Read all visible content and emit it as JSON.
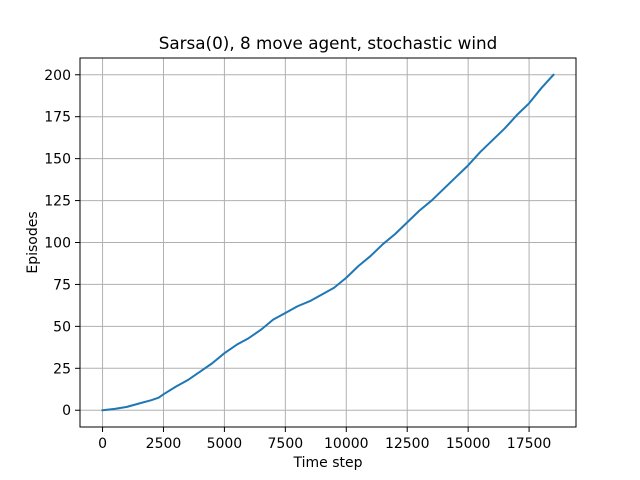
{
  "chart_data": {
    "type": "line",
    "title": "Sarsa(0), 8 move agent, stochastic wind",
    "xlabel": "Time step",
    "ylabel": "Episodes",
    "xlim": [
      -925,
      19425
    ],
    "ylim": [
      -10,
      210
    ],
    "xticks": [
      0,
      2500,
      5000,
      7500,
      10000,
      12500,
      15000,
      17500
    ],
    "yticks": [
      0,
      25,
      50,
      75,
      100,
      125,
      150,
      175,
      200
    ],
    "grid": true,
    "series": [
      {
        "color": "#1f77b4",
        "x": [
          0,
          500,
          1000,
          1500,
          2000,
          2300,
          2500,
          3000,
          3500,
          4000,
          4500,
          5000,
          5500,
          6000,
          6500,
          7000,
          7500,
          8000,
          8500,
          9000,
          9500,
          10000,
          10500,
          11000,
          11500,
          12000,
          12500,
          13000,
          13500,
          14000,
          14500,
          15000,
          15500,
          16000,
          16500,
          17000,
          17500,
          18000,
          18500
        ],
        "y": [
          0,
          0.8,
          2,
          4,
          6,
          7.5,
          9.5,
          14,
          18,
          23,
          28,
          34,
          39,
          43,
          48,
          54,
          58,
          62,
          65,
          69,
          73,
          79,
          86,
          92,
          99,
          105,
          112,
          119,
          125,
          132,
          139,
          146,
          154,
          161,
          168,
          176,
          183,
          192,
          200
        ]
      }
    ]
  }
}
